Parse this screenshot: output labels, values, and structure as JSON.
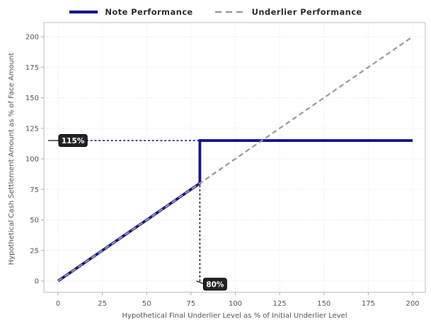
{
  "colors": {
    "note_line": "#13138d",
    "underlier_line": "#999999",
    "grid": "#dcdcdc",
    "spine": "#c8c8c8",
    "tick_mark": "#aaaaaa",
    "tick_text": "#555555",
    "axis_label_text": "#555555",
    "legend_text": "#2e2e2e",
    "annotation_box_bg": "#242424",
    "annotation_box_border": "#000000",
    "annotation_text": "#ffffff",
    "cap_dotted": "#13138d",
    "barrier_dotted": "#222222",
    "background": "#ffffff"
  },
  "legend": {
    "items": [
      {
        "label": "Note Performance",
        "color": "#13138d",
        "style": "solid"
      },
      {
        "label": "Underlier Performance",
        "color": "#999999",
        "style": "dashed"
      }
    ]
  },
  "chart_data": {
    "type": "line",
    "title": "",
    "xlabel": "Hypothetical Final Underlier Level as % of Initial Underlier Level",
    "ylabel": "Hypothetical Cash Settlement Amount as % of Face Amount",
    "xlim": [
      0,
      200
    ],
    "ylim": [
      0,
      200
    ],
    "xticks": [
      0,
      25,
      50,
      75,
      100,
      125,
      150,
      175,
      200
    ],
    "yticks": [
      0,
      25,
      50,
      75,
      100,
      125,
      150,
      175,
      200
    ],
    "grid": true,
    "grid_style": "dotted",
    "legend_position": "top-center",
    "series": [
      {
        "name": "Note Performance",
        "color": "#13138d",
        "dash": "solid",
        "width": 3.8,
        "points": [
          [
            0,
            0
          ],
          [
            80,
            80
          ],
          [
            80,
            115
          ],
          [
            200,
            115
          ]
        ]
      },
      {
        "name": "Underlier Performance",
        "color": "#999999",
        "dash": "dashed",
        "width": 2.2,
        "points": [
          [
            0,
            0
          ],
          [
            200,
            200
          ]
        ]
      }
    ],
    "annotations": [
      {
        "text": "115%",
        "value": 115,
        "axis": "y",
        "dotted_from": [
          0,
          115
        ],
        "dotted_to": [
          80,
          115
        ],
        "line_color": "#13138d"
      },
      {
        "text": "80%",
        "value": 80,
        "axis": "x",
        "dotted_from": [
          80,
          0
        ],
        "dotted_to": [
          80,
          80
        ],
        "line_color": "#222222"
      }
    ]
  }
}
